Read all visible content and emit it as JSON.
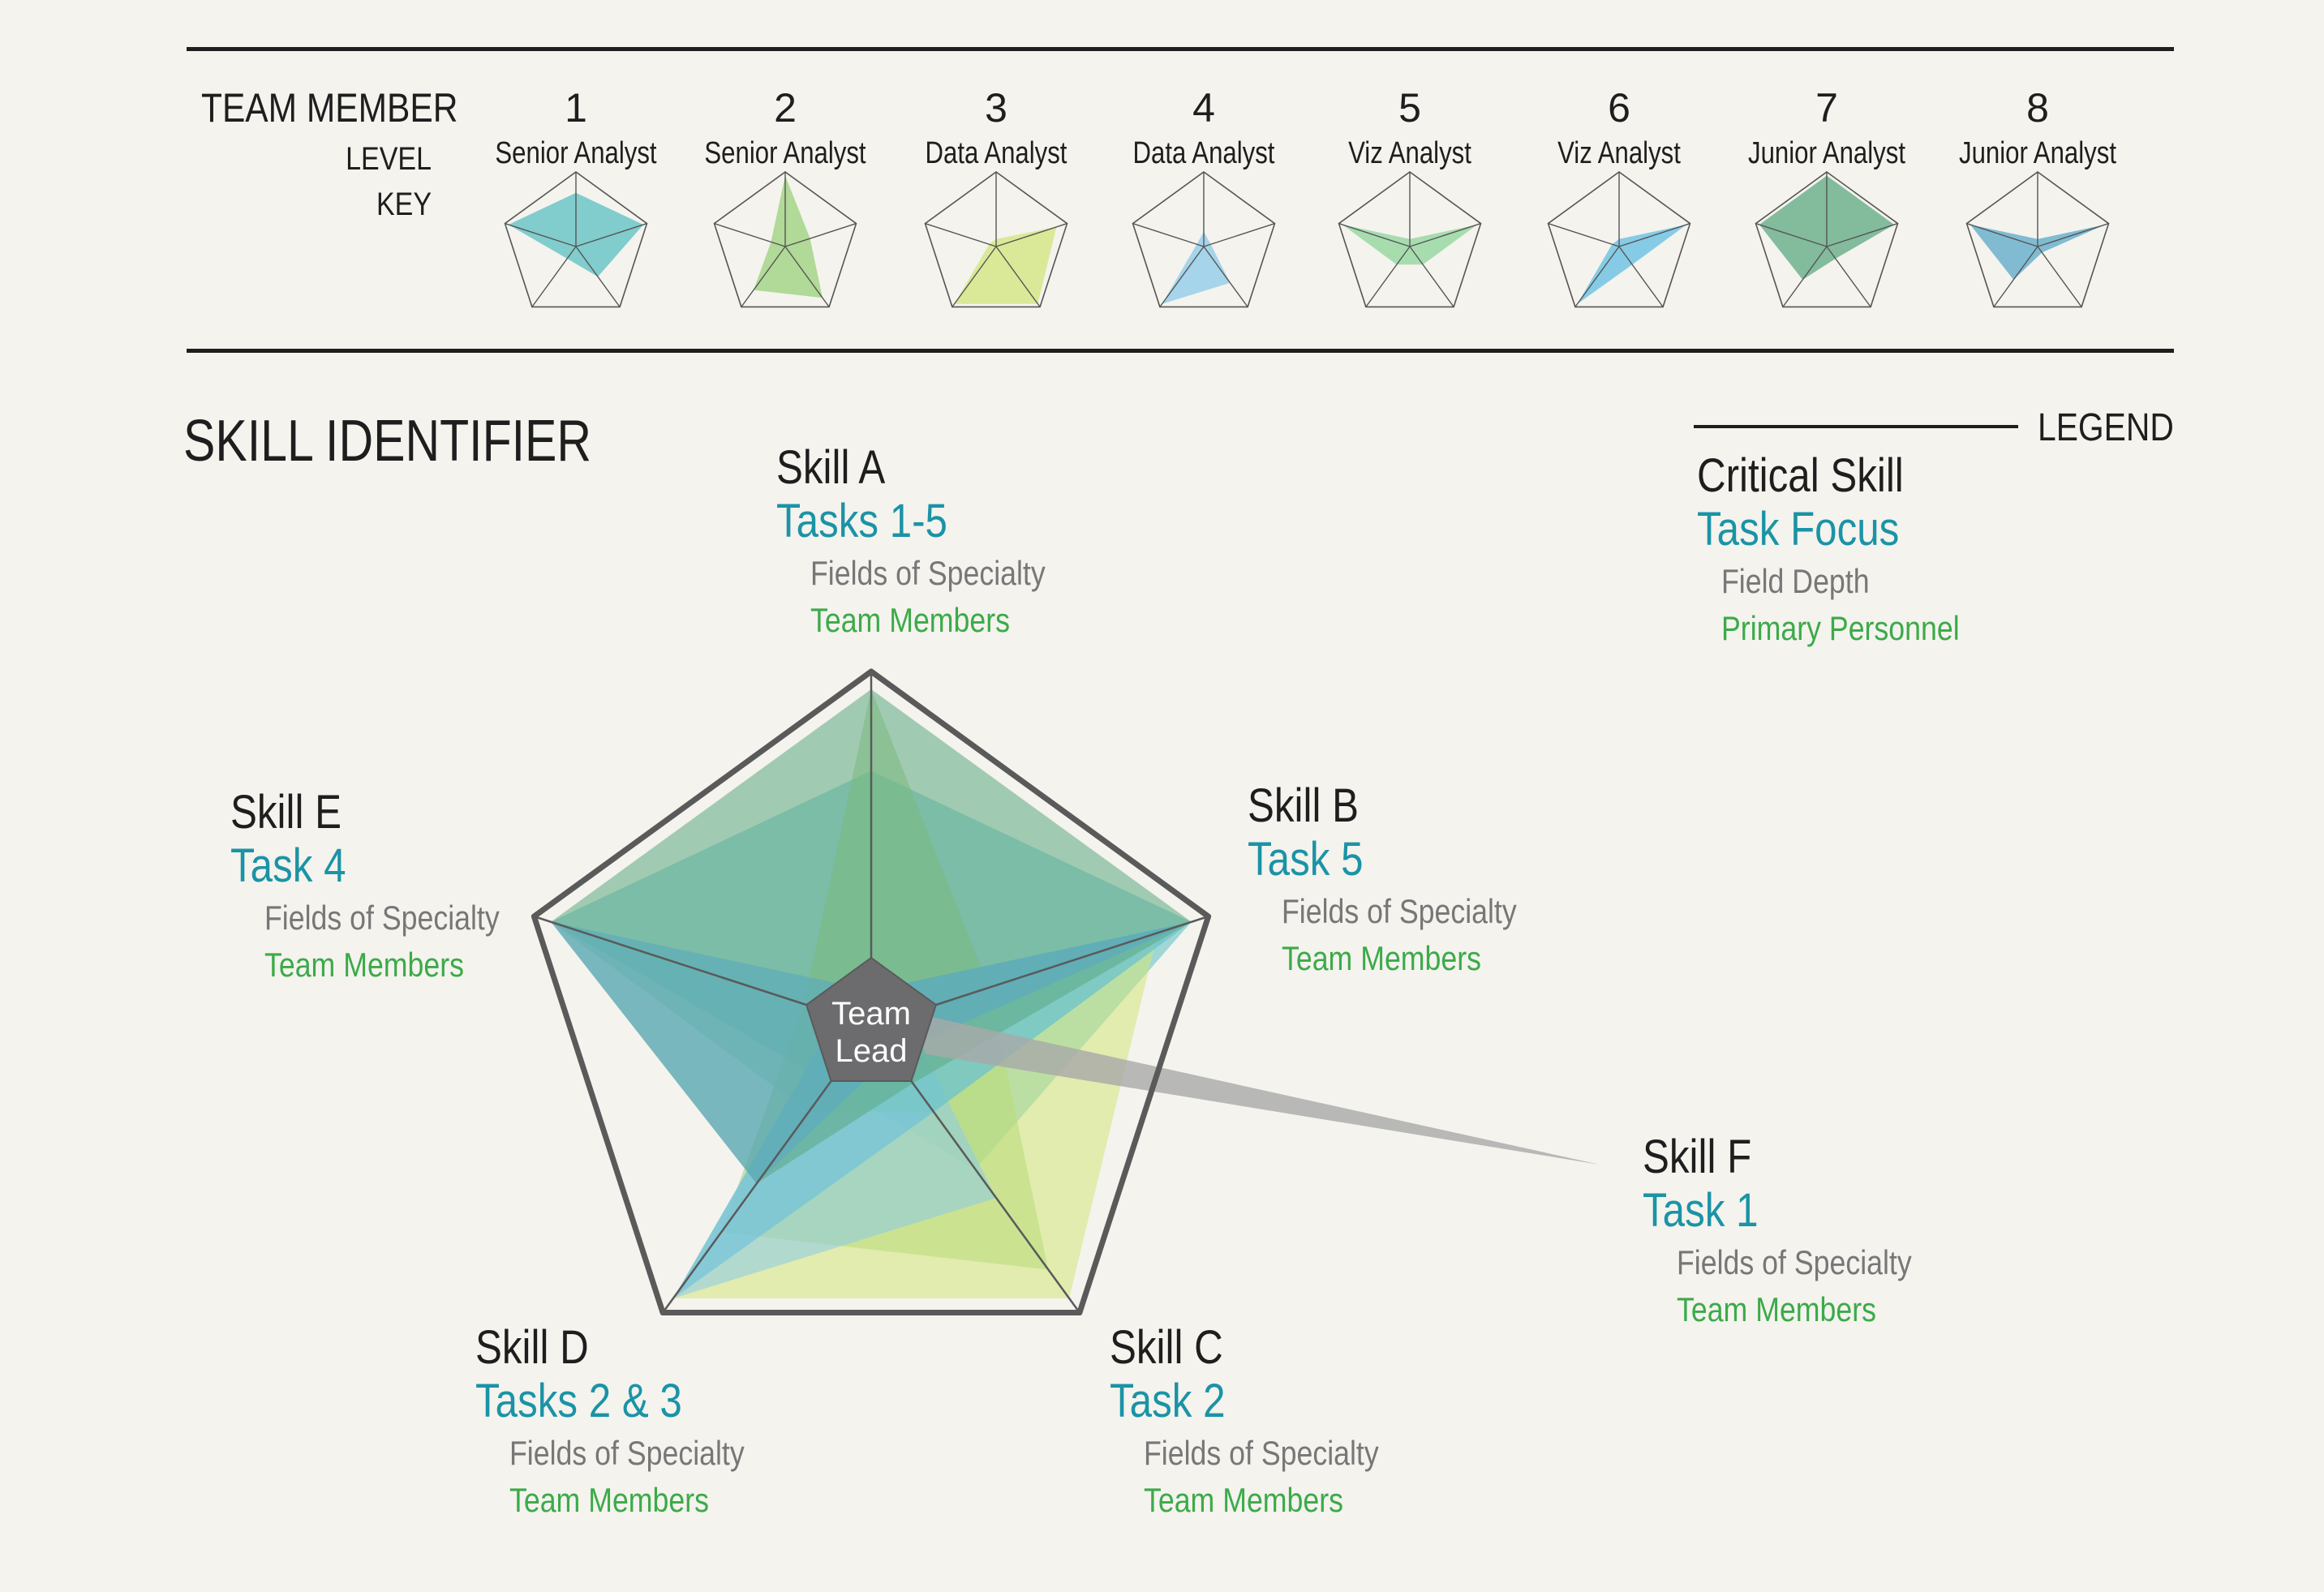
{
  "team_key": {
    "header": "TEAM MEMBER",
    "level_label": "LEVEL",
    "key_label": "KEY",
    "members": [
      {
        "number": "1",
        "level": "Senior Analyst",
        "color": "#5bbfc2",
        "values": [
          0.72,
          0.95,
          0.5,
          0.2,
          0.95
        ]
      },
      {
        "number": "2",
        "level": "Senior Analyst",
        "color": "#9bd07a",
        "values": [
          0.95,
          0.35,
          0.85,
          0.72,
          0.2
        ]
      },
      {
        "number": "3",
        "level": "Data Analyst",
        "color": "#d2e57a",
        "values": [
          0.1,
          0.85,
          0.95,
          0.95,
          0.1
        ]
      },
      {
        "number": "4",
        "level": "Data Analyst",
        "color": "#8ccae8",
        "values": [
          0.2,
          0.1,
          0.6,
          0.95,
          0.1
        ]
      },
      {
        "number": "5",
        "level": "Viz Analyst",
        "color": "#8ed49a",
        "values": [
          0.1,
          0.95,
          0.3,
          0.3,
          0.95
        ]
      },
      {
        "number": "6",
        "level": "Viz Analyst",
        "color": "#62bee2",
        "values": [
          0.1,
          0.95,
          0.3,
          0.95,
          0.1
        ]
      },
      {
        "number": "7",
        "level": "Junior Analyst",
        "color": "#5da882",
        "values": [
          0.95,
          0.95,
          0.2,
          0.55,
          0.95
        ]
      },
      {
        "number": "8",
        "level": "Junior Analyst",
        "color": "#5aa8c8",
        "values": [
          0.1,
          0.95,
          0.1,
          0.55,
          0.95
        ]
      }
    ]
  },
  "skill_identifier": {
    "title": "SKILL IDENTIFIER",
    "center_label_line1": "Team",
    "center_label_line2": "Lead",
    "skills": [
      {
        "id": "a",
        "name": "Skill A",
        "task": "Tasks 1-5",
        "fields": "Fields of Specialty",
        "team": "Team Members"
      },
      {
        "id": "b",
        "name": "Skill B",
        "task": "Task 5",
        "fields": "Fields of Specialty",
        "team": "Team Members"
      },
      {
        "id": "c",
        "name": "Skill C",
        "task": "Task 2",
        "fields": "Fields of Specialty",
        "team": "Team Members"
      },
      {
        "id": "d",
        "name": "Skill D",
        "task": "Tasks 2 & 3",
        "fields": "Fields of Specialty",
        "team": "Team Members"
      },
      {
        "id": "e",
        "name": "Skill E",
        "task": "Task 4",
        "fields": "Fields of Specialty",
        "team": "Team Members"
      },
      {
        "id": "f",
        "name": "Skill F",
        "task": "Task 1",
        "fields": "Fields of Specialty",
        "team": "Team Members"
      }
    ]
  },
  "legend": {
    "header": "LEGEND",
    "critical_skill": "Critical Skill",
    "task_focus": "Task Focus",
    "field_depth": "Field Depth",
    "primary_personnel": "Primary Personnel"
  },
  "colors": {
    "background": "#f4f3ee",
    "task": "#1b93a6",
    "fields": "#777777",
    "team": "#3caa49",
    "frame": "#5a5a5a",
    "center": "#6c6c6e"
  }
}
